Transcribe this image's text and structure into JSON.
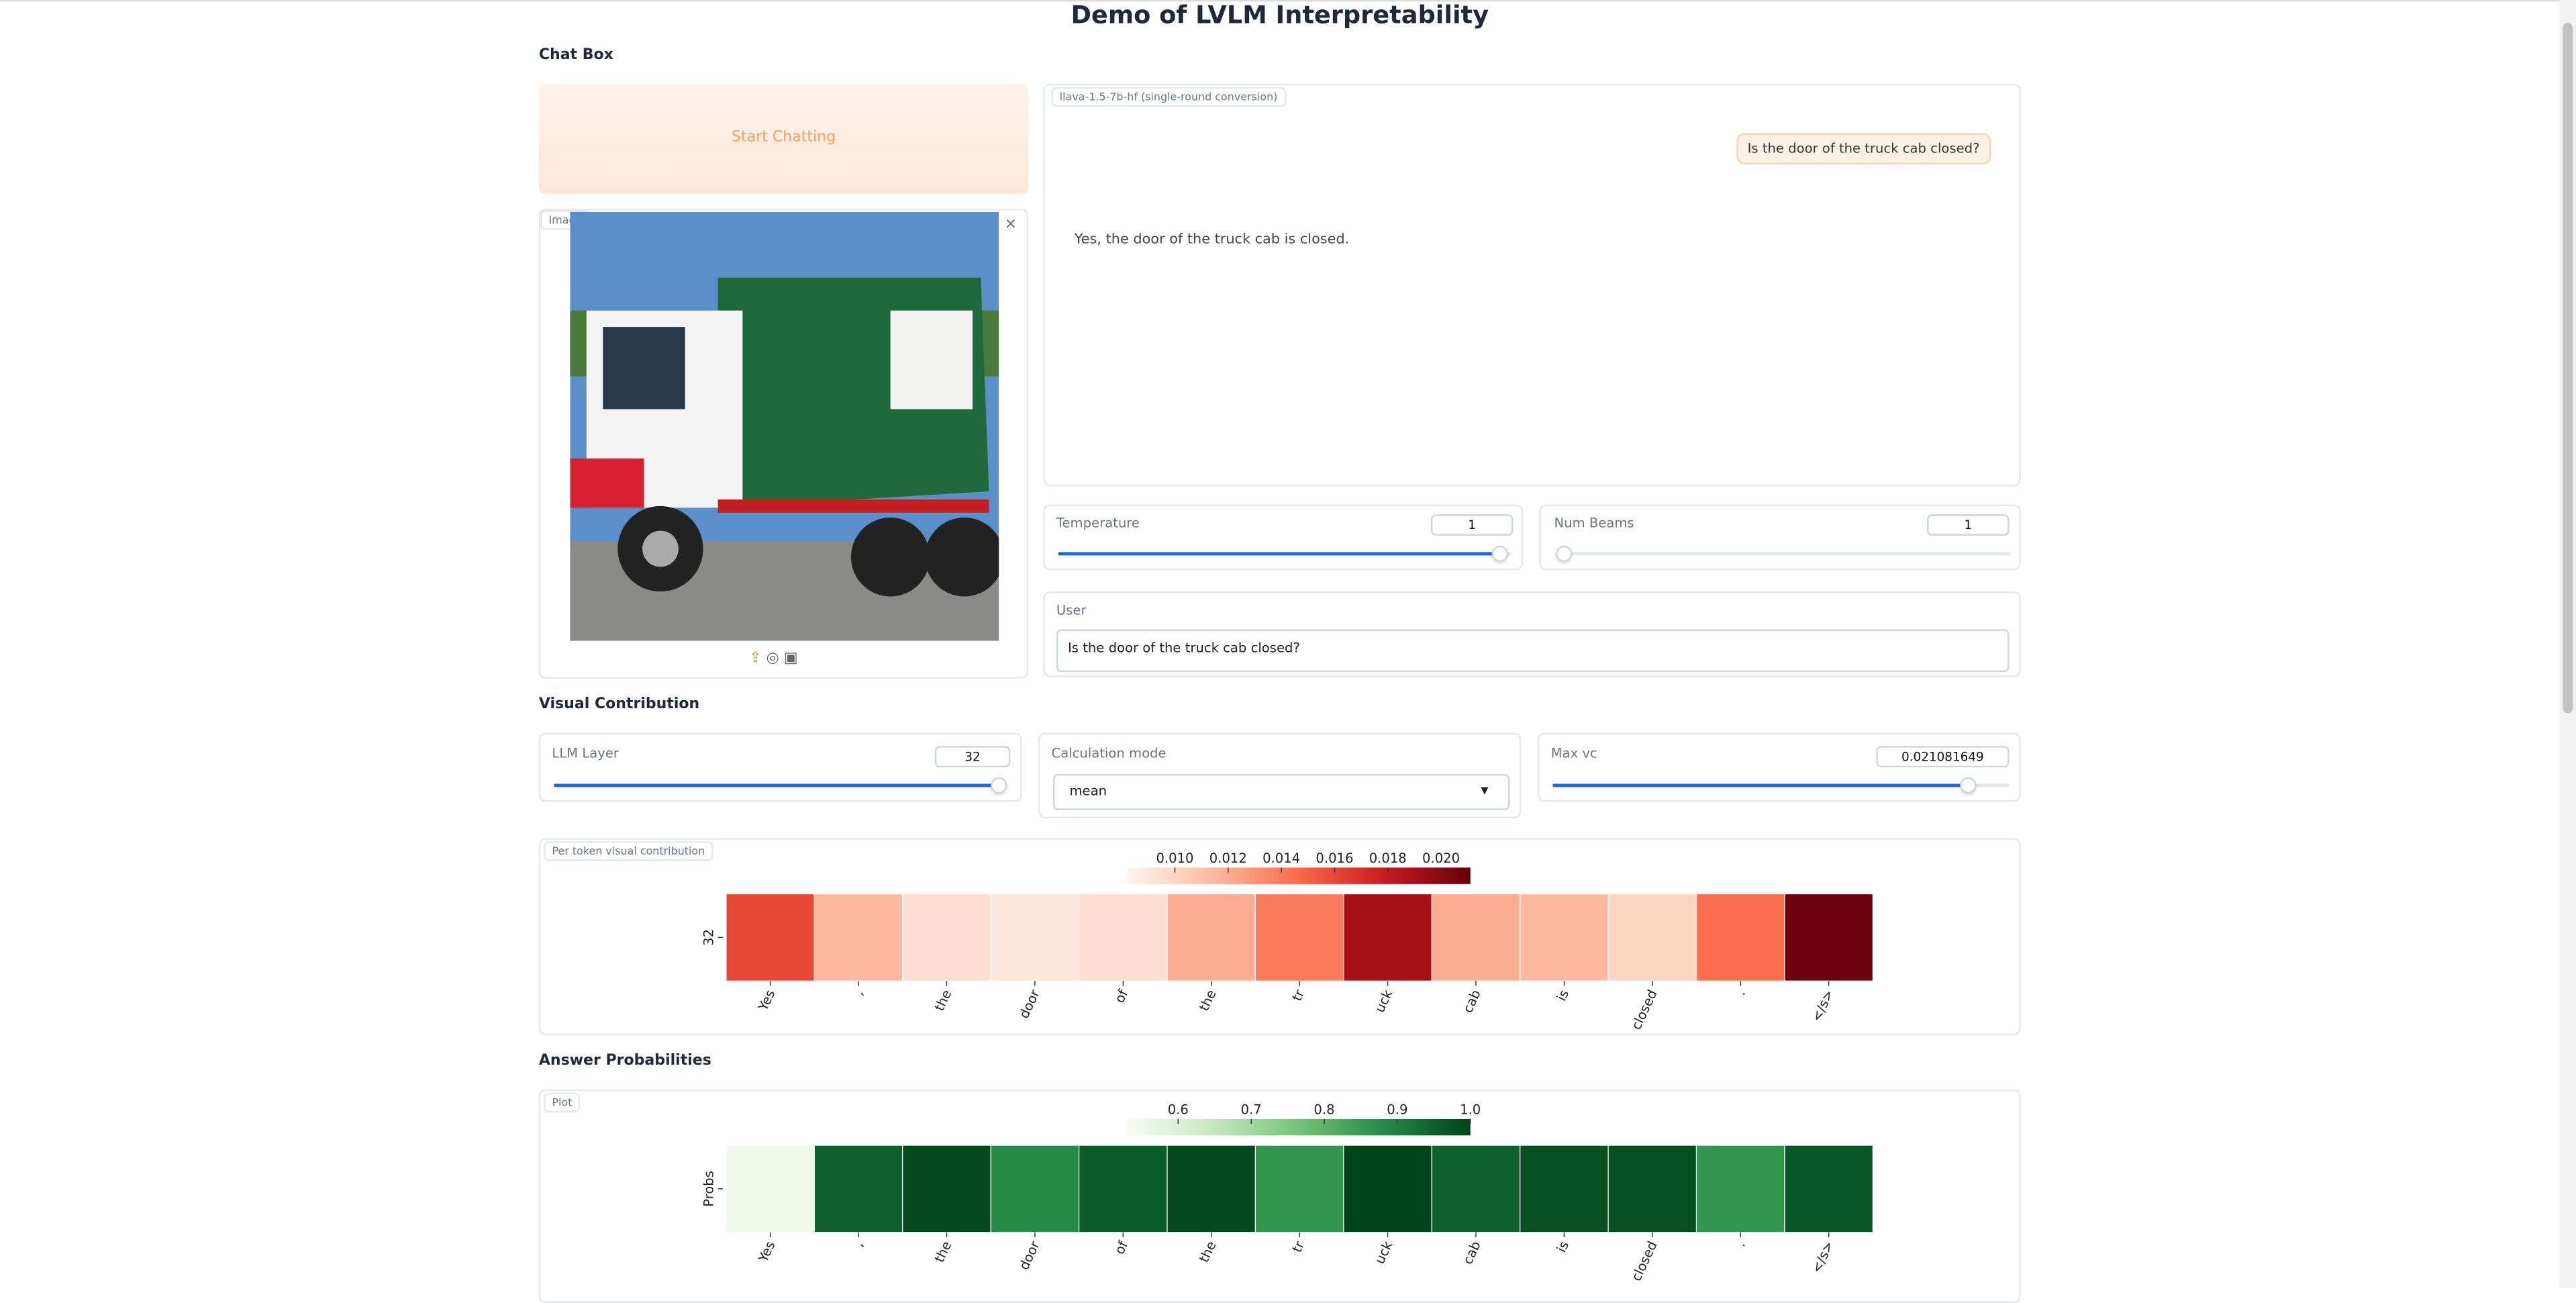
{
  "header": {
    "title": "Demo of LVLM Interpretability"
  },
  "chat_box": {
    "label": "Chat Box",
    "start_button": "Start Chatting",
    "image_label": "Image",
    "model_label": "llava-1.5-7b-hf (single-round conversion)",
    "user_message": "Is the door of the truck cab closed?",
    "bot_message": "Yes, the door of the truck cab is closed."
  },
  "temperature": {
    "label": "Temperature",
    "value": 1
  },
  "num_beams": {
    "label": "Num Beams",
    "value": 1
  },
  "user": {
    "label": "User",
    "text": "Is the door of the truck cab closed?"
  },
  "visual_contribution": {
    "label": "Visual Contribution",
    "llm_layer": {
      "label": "LLM Layer",
      "value": 32
    },
    "calc_mode": {
      "label": "Calculation mode",
      "value": "mean"
    },
    "max_vc": {
      "label": "Max vc",
      "value": "0.021081649"
    }
  },
  "answer_probabilities": {
    "label": "Answer Probabilities"
  },
  "chart_data": [
    {
      "type": "heatmap",
      "title": "Per token visual contribution",
      "rows": [
        "32"
      ],
      "categories": [
        "Yes",
        ",",
        "the",
        "door",
        "of",
        "the",
        "tr",
        "uck",
        "cab",
        "is",
        "closed",
        ".",
        "</s>"
      ],
      "values": [
        0.016,
        0.0115,
        0.0095,
        0.009,
        0.0095,
        0.012,
        0.014,
        0.019,
        0.012,
        0.0115,
        0.01,
        0.0145,
        0.021
      ],
      "colormap": "Reds",
      "clim": [
        0.0082,
        0.0211
      ],
      "cticks": [
        {
          "value": 0.01,
          "label": "0.010"
        },
        {
          "value": 0.012,
          "label": "0.012"
        },
        {
          "value": 0.014,
          "label": "0.014"
        },
        {
          "value": 0.016,
          "label": "0.016"
        },
        {
          "value": 0.018,
          "label": "0.018"
        },
        {
          "value": 0.02,
          "label": "0.020"
        }
      ]
    },
    {
      "type": "heatmap",
      "title": "Plot",
      "rows": [
        "Probs"
      ],
      "categories": [
        "Yes",
        ",",
        "the",
        "door",
        "of",
        "the",
        "tr",
        "uck",
        "cab",
        "is",
        "closed",
        ".",
        "</s>"
      ],
      "values": [
        0.55,
        0.95,
        0.99,
        0.88,
        0.96,
        0.99,
        0.86,
        1.0,
        0.95,
        0.98,
        0.98,
        0.86,
        0.97
      ],
      "colormap": "Greens",
      "clim": [
        0.53,
        1.0
      ],
      "cticks": [
        0.6,
        0.7,
        0.8,
        0.9,
        {
          "value": 1.0,
          "label": "1.0"
        }
      ]
    }
  ]
}
